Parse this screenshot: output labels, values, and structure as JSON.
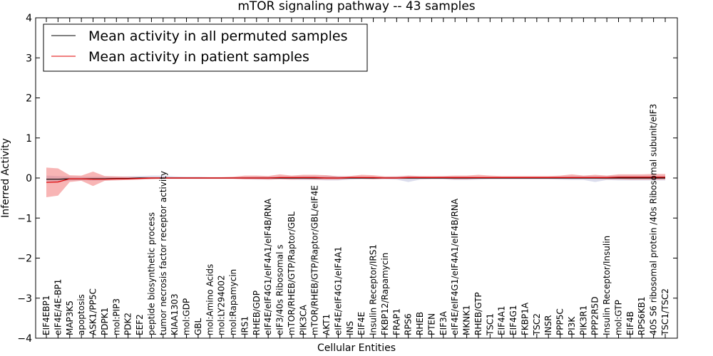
{
  "chart_data": {
    "type": "line",
    "title": "mTOR signaling pathway -- 43 samples",
    "xlabel": "Cellular Entities",
    "ylabel": "Inferred Activity",
    "ylim": [
      -4,
      4
    ],
    "yticks": [
      "−4",
      "−3",
      "−2",
      "−1",
      "0",
      "1",
      "2",
      "3",
      "4"
    ],
    "grid": false,
    "legend_position": "top-left",
    "categories": [
      "EIF4EBP1",
      "eIF4E/4E-BP1",
      "MAP3K5",
      "apoptosis",
      "ASK1/PP5C",
      "PDPK1",
      "mol:PIP3",
      "PDK2",
      "EEF2",
      "peptide biosynthetic process",
      "tumor necrosis factor receptor activity",
      "KIAA1303",
      "mol:GDP",
      "GBL",
      "mol:Amino Acids",
      "mol:LY294002",
      "mol:Rapamycin",
      "IRS1",
      "RHEB/GDP",
      "eIF4E/eIF4G1/eIF4A1/eIF4B/RNA",
      "eIF3/40s Ribosomal s",
      "mTOR/RHEB/GTP/Raptor/GBL",
      "PIK3CA",
      "mTOR/RHEB/GTP/Raptor/GBL/eIF4E",
      "AKT1",
      "eIF4E/eIF4G1/eIF4A1",
      "INS",
      "EIF4E",
      "Insulin Receptor/IRS1",
      "FKBP12/Rapamycin",
      "FRAP1",
      "RPS6",
      "RHEB",
      "PTEN",
      "EIF3A",
      "eIF4E/eIF4G1/eIF4A1/eIF4B/RNA",
      "MKNK1",
      "RHEB/GTP",
      "TSC1",
      "EIF4A1",
      "EIF4G1",
      "FKBP1A",
      "TSC2",
      "INSR",
      "PPP5C",
      "PI3K",
      "PIK3R1",
      "PPP2R5D",
      "Insulin Receptor/Insulin",
      "mol:GTP",
      "EIF4B",
      "RPS6KB1",
      "40S S6 ribosomal protein /40s Ribosomal subunit/eIF3",
      "TSC1/TSC2"
    ],
    "series": [
      {
        "name": "Mean activity in all permuted samples",
        "color": "#000000",
        "band_color": "#b0b4d8",
        "values": [
          -0.03,
          -0.03,
          -0.02,
          -0.02,
          -0.02,
          -0.02,
          -0.01,
          -0.01,
          0.0,
          0.0,
          0.0,
          0.0,
          0.0,
          0.0,
          0.0,
          0.0,
          0.0,
          0.0,
          0.0,
          0.0,
          0.0,
          0.0,
          0.0,
          0.0,
          0.0,
          0.0,
          0.0,
          0.0,
          0.0,
          0.0,
          0.0,
          0.0,
          0.0,
          0.0,
          0.0,
          0.0,
          0.0,
          0.0,
          0.0,
          0.0,
          0.0,
          0.0,
          0.0,
          0.0,
          0.0,
          0.0,
          0.0,
          0.0,
          0.0,
          0.0,
          0.0,
          0.0,
          0.0,
          0.0
        ],
        "lower": [
          -0.12,
          -0.1,
          -0.07,
          -0.06,
          -0.07,
          -0.06,
          -0.05,
          -0.04,
          -0.03,
          -0.02,
          -0.02,
          -0.02,
          -0.02,
          -0.02,
          -0.02,
          -0.02,
          -0.02,
          -0.03,
          -0.04,
          -0.04,
          -0.03,
          -0.04,
          -0.05,
          -0.05,
          -0.06,
          -0.06,
          -0.04,
          -0.03,
          -0.03,
          -0.03,
          -0.04,
          -0.1,
          -0.04,
          -0.03,
          -0.03,
          -0.05,
          -0.05,
          -0.04,
          -0.03,
          -0.03,
          -0.03,
          -0.03,
          -0.03,
          -0.03,
          -0.04,
          -0.05,
          -0.05,
          -0.1,
          -0.05,
          -0.06,
          -0.06,
          -0.06,
          -0.06,
          -0.06
        ],
        "upper": [
          0.06,
          0.05,
          0.04,
          0.03,
          0.03,
          0.03,
          0.03,
          0.04,
          0.05,
          0.06,
          0.06,
          0.04,
          0.03,
          0.03,
          0.02,
          0.02,
          0.02,
          0.03,
          0.04,
          0.04,
          0.04,
          0.04,
          0.05,
          0.05,
          0.06,
          0.05,
          0.04,
          0.04,
          0.03,
          0.03,
          0.04,
          0.05,
          0.04,
          0.03,
          0.04,
          0.04,
          0.04,
          0.03,
          0.03,
          0.03,
          0.03,
          0.03,
          0.03,
          0.03,
          0.04,
          0.05,
          0.05,
          0.05,
          0.05,
          0.06,
          0.06,
          0.06,
          0.06,
          0.06
        ]
      },
      {
        "name": "Mean activity in patient samples",
        "color": "#e00000",
        "band_color": "#f26b6b",
        "values": [
          -0.11,
          -0.1,
          -0.02,
          -0.02,
          -0.03,
          -0.03,
          -0.02,
          -0.02,
          -0.01,
          0.0,
          0.0,
          0.0,
          0.0,
          0.0,
          0.0,
          0.0,
          0.0,
          0.0,
          0.0,
          0.0,
          0.01,
          0.01,
          0.01,
          0.01,
          0.0,
          0.0,
          0.01,
          0.01,
          0.01,
          0.0,
          0.0,
          0.01,
          0.01,
          0.01,
          0.01,
          0.01,
          0.01,
          0.01,
          0.01,
          0.01,
          0.01,
          0.01,
          0.01,
          0.01,
          0.01,
          0.01,
          0.01,
          0.01,
          0.01,
          0.02,
          0.02,
          0.02,
          0.02,
          0.02
        ],
        "lower": [
          -0.48,
          -0.44,
          -0.1,
          -0.07,
          -0.2,
          -0.07,
          -0.06,
          -0.05,
          -0.04,
          -0.03,
          -0.02,
          -0.02,
          -0.02,
          -0.02,
          -0.02,
          -0.02,
          -0.02,
          -0.03,
          -0.03,
          -0.04,
          -0.03,
          -0.04,
          -0.03,
          -0.04,
          -0.04,
          -0.04,
          -0.02,
          -0.02,
          -0.03,
          -0.02,
          -0.02,
          -0.02,
          -0.02,
          -0.02,
          -0.02,
          -0.03,
          -0.03,
          -0.02,
          -0.02,
          -0.02,
          -0.02,
          -0.02,
          -0.02,
          -0.02,
          -0.02,
          -0.02,
          -0.02,
          -0.02,
          -0.03,
          -0.03,
          -0.04,
          -0.04,
          -0.04,
          -0.04
        ],
        "upper": [
          0.26,
          0.24,
          0.07,
          0.06,
          0.16,
          0.05,
          0.04,
          0.03,
          0.02,
          0.02,
          0.02,
          0.02,
          0.02,
          0.02,
          0.02,
          0.02,
          0.03,
          0.06,
          0.06,
          0.05,
          0.09,
          0.06,
          0.08,
          0.08,
          0.07,
          0.04,
          0.05,
          0.08,
          0.07,
          0.04,
          0.04,
          0.06,
          0.05,
          0.05,
          0.05,
          0.06,
          0.06,
          0.08,
          0.06,
          0.05,
          0.05,
          0.05,
          0.05,
          0.05,
          0.06,
          0.09,
          0.06,
          0.08,
          0.06,
          0.09,
          0.09,
          0.09,
          0.1,
          0.1
        ]
      }
    ]
  }
}
